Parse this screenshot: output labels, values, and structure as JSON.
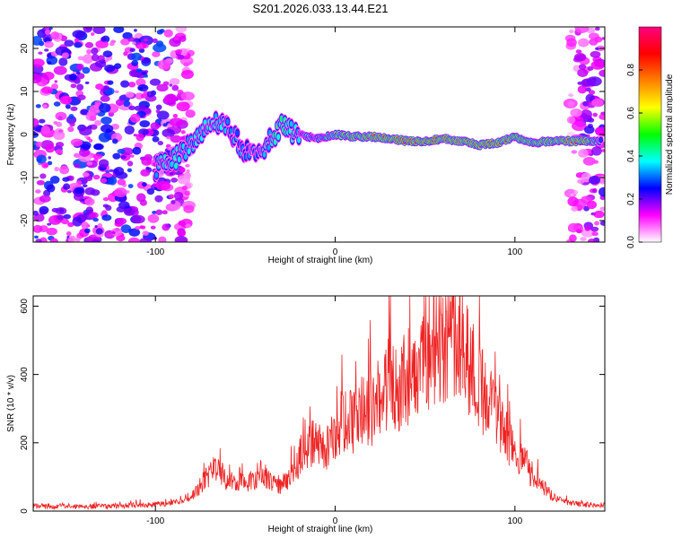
{
  "title": "S201.2026.033.13.44.E21",
  "chart_data": [
    {
      "type": "heatmap",
      "xlabel": "Height of straight line (km)",
      "ylabel": "Frequency (Hz)",
      "xlim": [
        -168,
        150
      ],
      "ylim": [
        -25,
        25
      ],
      "xticks": [
        -100,
        0,
        100
      ],
      "yticks": [
        20,
        10,
        0,
        -10,
        -20
      ],
      "colorbar": {
        "label": "Normalized spectral amplitude",
        "range": [
          0,
          1
        ],
        "ticks": [
          "0.0",
          "0.2",
          "0.4",
          "0.6",
          "0.8"
        ],
        "colors": [
          "#ffffff",
          "#ff00ff",
          "#0000ff",
          "#00ffff",
          "#00ff00",
          "#ffff00",
          "#ff8000",
          "#ff0000",
          "#ff0080"
        ]
      },
      "ridge": {
        "x": [
          -100,
          -90,
          -80,
          -70,
          -60,
          -50,
          -40,
          -30,
          -20,
          -10,
          0,
          10,
          20,
          30,
          40,
          50,
          60,
          70,
          80,
          90,
          100,
          110,
          120,
          130,
          140,
          148
        ],
        "y": [
          -8,
          -6,
          -2,
          3,
          2,
          -4,
          -3,
          2,
          0,
          -1,
          0,
          -0.5,
          -0.5,
          -1,
          -1.5,
          -1.5,
          -1,
          -1.5,
          -2.5,
          -2,
          -0.5,
          -2,
          -1.5,
          -1.5,
          -1.5,
          -1.5
        ],
        "amplitude": [
          0.35,
          0.4,
          0.35,
          0.4,
          0.35,
          0.3,
          0.35,
          0.45,
          0.35,
          0.4,
          0.6,
          0.75,
          0.8,
          0.85,
          0.95,
          0.95,
          0.9,
          0.85,
          0.9,
          0.85,
          0.8,
          0.75,
          0.75,
          0.85,
          0.85,
          0.3
        ]
      },
      "noise_regions": [
        {
          "x_range": [
            -168,
            -80
          ],
          "y_range": [
            -25,
            25
          ],
          "amplitude": 0.25
        },
        {
          "x_range": [
            130,
            150
          ],
          "y_range": [
            -25,
            25
          ],
          "amplitude": 0.2
        }
      ]
    },
    {
      "type": "line",
      "xlabel": "Height of straight line (km)",
      "ylabel": "SNR (10 * v/v)",
      "xlim": [
        -168,
        150
      ],
      "ylim": [
        0,
        630
      ],
      "xticks": [
        -100,
        0,
        100
      ],
      "yticks": [
        0,
        200,
        400,
        600
      ],
      "series": [
        {
          "name": "SNR",
          "color": "#ee2222",
          "x": [
            -168,
            -150,
            -130,
            -110,
            -95,
            -85,
            -80,
            -75,
            -70,
            -65,
            -60,
            -55,
            -50,
            -45,
            -40,
            -35,
            -30,
            -25,
            -20,
            -15,
            -10,
            -5,
            0,
            5,
            10,
            15,
            20,
            25,
            30,
            35,
            40,
            45,
            50,
            55,
            60,
            65,
            70,
            75,
            80,
            85,
            90,
            95,
            100,
            105,
            110,
            115,
            120,
            125,
            130,
            140,
            150
          ],
          "y": [
            15,
            15,
            15,
            18,
            22,
            30,
            40,
            80,
            110,
            130,
            95,
            80,
            85,
            100,
            120,
            90,
            80,
            100,
            160,
            210,
            200,
            180,
            240,
            280,
            270,
            300,
            310,
            360,
            390,
            380,
            410,
            430,
            460,
            500,
            520,
            540,
            510,
            450,
            380,
            330,
            280,
            230,
            190,
            150,
            110,
            75,
            50,
            35,
            25,
            20,
            18
          ]
        }
      ]
    }
  ]
}
